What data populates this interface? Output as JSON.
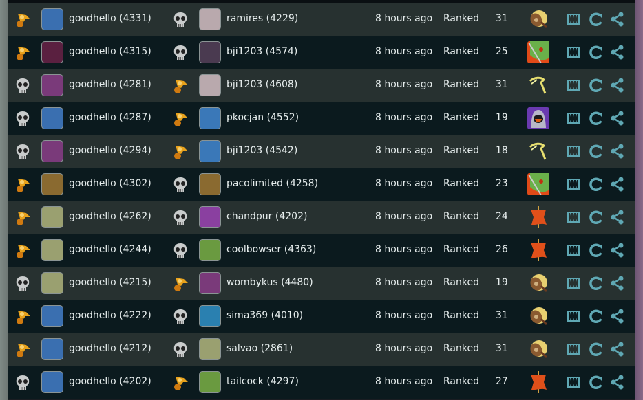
{
  "colors": {
    "win": "#e8a21c",
    "loss": "#c9cccc",
    "action": "#5fa8b4"
  },
  "rows": [
    {
      "p1": {
        "name": "goodhello",
        "rating": "(4331)",
        "result": "win",
        "avatar": "#3a6fb0"
      },
      "p2": {
        "name": "ramires",
        "rating": "(4229)",
        "result": "loss",
        "avatar": "#b9a9ad"
      },
      "time": "8 hours ago",
      "mode": "Ranked",
      "score": "31",
      "arena": "shield"
    },
    {
      "p1": {
        "name": "goodhello",
        "rating": "(4315)",
        "result": "win",
        "avatar": "#5a2040"
      },
      "p2": {
        "name": "bji1203",
        "rating": "(4574)",
        "result": "loss",
        "avatar": "#4a3a50"
      },
      "time": "8 hours ago",
      "mode": "Ranked",
      "score": "25",
      "arena": "goblin"
    },
    {
      "p1": {
        "name": "goodhello",
        "rating": "(4281)",
        "result": "loss",
        "avatar": "#7a3a7a"
      },
      "p2": {
        "name": "bji1203",
        "rating": "(4608)",
        "result": "win",
        "avatar": "#b9a9ad"
      },
      "time": "8 hours ago",
      "mode": "Ranked",
      "score": "31",
      "arena": "lightning"
    },
    {
      "p1": {
        "name": "goodhello",
        "rating": "(4287)",
        "result": "loss",
        "avatar": "#3a6fb0"
      },
      "p2": {
        "name": "pkocjan",
        "rating": "(4552)",
        "result": "win",
        "avatar": "#3a78b8"
      },
      "time": "8 hours ago",
      "mode": "Ranked",
      "score": "19",
      "arena": "hooded"
    },
    {
      "p1": {
        "name": "goodhello",
        "rating": "(4294)",
        "result": "loss",
        "avatar": "#7a3a7a"
      },
      "p2": {
        "name": "bji1203",
        "rating": "(4542)",
        "result": "win",
        "avatar": "#3a78b8"
      },
      "time": "8 hours ago",
      "mode": "Ranked",
      "score": "18",
      "arena": "lightning"
    },
    {
      "p1": {
        "name": "goodhello",
        "rating": "(4302)",
        "result": "win",
        "avatar": "#8a6a30"
      },
      "p2": {
        "name": "pacolimited",
        "rating": "(4258)",
        "result": "loss",
        "avatar": "#8a6a30"
      },
      "time": "8 hours ago",
      "mode": "Ranked",
      "score": "23",
      "arena": "goblin"
    },
    {
      "p1": {
        "name": "goodhello",
        "rating": "(4262)",
        "result": "win",
        "avatar": "#9aa070"
      },
      "p2": {
        "name": "chandpur",
        "rating": "(4202)",
        "result": "loss",
        "avatar": "#8a40a0"
      },
      "time": "8 hours ago",
      "mode": "Ranked",
      "score": "24",
      "arena": "flag"
    },
    {
      "p1": {
        "name": "goodhello",
        "rating": "(4244)",
        "result": "win",
        "avatar": "#9aa070"
      },
      "p2": {
        "name": "coolbowser",
        "rating": "(4363)",
        "result": "loss",
        "avatar": "#6a9a40"
      },
      "time": "8 hours ago",
      "mode": "Ranked",
      "score": "26",
      "arena": "flag"
    },
    {
      "p1": {
        "name": "goodhello",
        "rating": "(4215)",
        "result": "loss",
        "avatar": "#9aa070"
      },
      "p2": {
        "name": "wombykus",
        "rating": "(4480)",
        "result": "win",
        "avatar": "#7a3a7a"
      },
      "time": "8 hours ago",
      "mode": "Ranked",
      "score": "19",
      "arena": "shield"
    },
    {
      "p1": {
        "name": "goodhello",
        "rating": "(4222)",
        "result": "win",
        "avatar": "#3a6fb0"
      },
      "p2": {
        "name": "sima369",
        "rating": "(4010)",
        "result": "loss",
        "avatar": "#2a80b0"
      },
      "time": "8 hours ago",
      "mode": "Ranked",
      "score": "31",
      "arena": "shield"
    },
    {
      "p1": {
        "name": "goodhello",
        "rating": "(4212)",
        "result": "win",
        "avatar": "#3a6fb0"
      },
      "p2": {
        "name": "salvao",
        "rating": "(2861)",
        "result": "loss",
        "avatar": "#9aa070"
      },
      "time": "8 hours ago",
      "mode": "Ranked",
      "score": "31",
      "arena": "shield"
    },
    {
      "p1": {
        "name": "goodhello",
        "rating": "(4202)",
        "result": "loss",
        "avatar": "#3a6fb0"
      },
      "p2": {
        "name": "tailcock",
        "rating": "(4297)",
        "result": "win",
        "avatar": "#6a9a40"
      },
      "time": "8 hours ago",
      "mode": "Ranked",
      "score": "27",
      "arena": "flag"
    }
  ]
}
